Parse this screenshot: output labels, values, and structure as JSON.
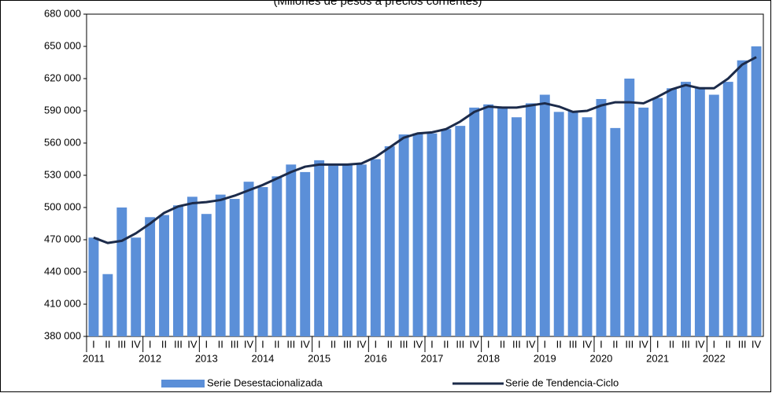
{
  "chart_data": {
    "type": "bar",
    "title": "(Millones de pesos a precios corrientes)",
    "categories": [
      "I",
      "II",
      "III",
      "IV",
      "I",
      "II",
      "III",
      "IV",
      "I",
      "II",
      "III",
      "IV",
      "I",
      "II",
      "III",
      "IV",
      "I",
      "II",
      "III",
      "IV",
      "I",
      "II",
      "III",
      "IV",
      "I",
      "II",
      "III",
      "IV",
      "I",
      "II",
      "III",
      "IV",
      "I",
      "II",
      "III",
      "IV",
      "I",
      "II",
      "III",
      "IV",
      "I",
      "II",
      "III",
      "IV",
      "I",
      "II",
      "III",
      "IV"
    ],
    "groups": [
      "2011",
      "2012",
      "2013",
      "2014",
      "2015",
      "2016",
      "2017",
      "2018",
      "2019",
      "2020",
      "2021",
      "2022"
    ],
    "series": [
      {
        "name": "Serie Desestacionalizada",
        "type": "bar",
        "color": "#5b8fd8",
        "values": [
          472000,
          438000,
          500000,
          472000,
          491000,
          493000,
          502000,
          510000,
          494000,
          512000,
          508000,
          524000,
          519000,
          529000,
          540000,
          533000,
          544000,
          539000,
          540000,
          540000,
          545000,
          557000,
          568000,
          569000,
          569000,
          573000,
          576000,
          593000,
          596000,
          593000,
          584000,
          597000,
          605000,
          589000,
          590000,
          584000,
          601000,
          574000,
          620000,
          593000,
          602000,
          611000,
          617000,
          612000,
          605000,
          617000,
          637000,
          650000
        ]
      },
      {
        "name": "Serie de Tendencia-Ciclo",
        "type": "line",
        "color": "#1c2b4a",
        "values": [
          472000,
          467000,
          469000,
          476000,
          485000,
          495000,
          501000,
          504000,
          505000,
          507000,
          511000,
          516000,
          521000,
          527000,
          533000,
          538000,
          540000,
          540000,
          540000,
          541000,
          547000,
          556000,
          565000,
          569000,
          570000,
          573000,
          580000,
          589000,
          594000,
          593000,
          593000,
          595000,
          597000,
          594000,
          589000,
          590000,
          595000,
          598000,
          598000,
          597000,
          603000,
          610000,
          614000,
          611000,
          611000,
          620000,
          633000,
          640000
        ]
      }
    ],
    "ylim": [
      380000,
      680000
    ],
    "yticks": [
      {
        "value": 380000,
        "label": "380 000"
      },
      {
        "value": 410000,
        "label": "410 000"
      },
      {
        "value": 440000,
        "label": "440 000"
      },
      {
        "value": 470000,
        "label": "470 000"
      },
      {
        "value": 500000,
        "label": "500 000"
      },
      {
        "value": 530000,
        "label": "530 000"
      },
      {
        "value": 560000,
        "label": "560 000"
      },
      {
        "value": 590000,
        "label": "590 000"
      },
      {
        "value": 620000,
        "label": "620 000"
      },
      {
        "value": 650000,
        "label": "650 000"
      },
      {
        "value": 680000,
        "label": "680 000"
      }
    ]
  }
}
